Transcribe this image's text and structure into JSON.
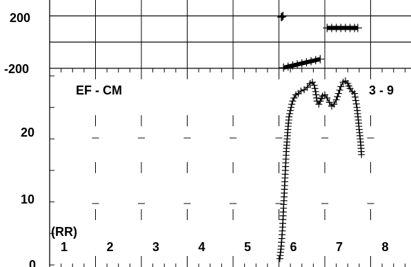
{
  "chart_data": [
    {
      "type": "scatter",
      "panel": "top",
      "title": "",
      "yticks": [
        200,
        -200
      ],
      "ytick_labels": [
        "200",
        "-200"
      ],
      "ylim": [
        -200,
        200
      ],
      "grid": true,
      "series": [
        {
          "values_x": [
            5.05,
            5.07,
            5.09
          ],
          "values_y": [
            190,
            195,
            200
          ]
        },
        {
          "values_x": [
            5.1,
            5.2,
            5.3,
            5.4,
            5.5,
            5.6,
            5.7,
            5.8,
            5.9
          ],
          "values_y": [
            -195,
            -187,
            -178,
            -170,
            -162,
            -154,
            -146,
            -138,
            -130
          ]
        },
        {
          "values_x": [
            6.05,
            6.15,
            6.25,
            6.35,
            6.45,
            6.55,
            6.65,
            6.72
          ],
          "values_y": [
            108,
            108,
            108,
            108,
            108,
            108,
            108,
            108
          ]
        }
      ]
    },
    {
      "type": "scatter",
      "panel": "bottom",
      "title": "EF - CM",
      "right_label": "3 - 9",
      "axis_note": "(RR)",
      "yticks": [
        0,
        10,
        20
      ],
      "ytick_labels": [
        "0",
        "10",
        "20"
      ],
      "ylim": [
        0,
        30
      ],
      "xlim": [
        0,
        9
      ],
      "column_labels": [
        "1",
        "2",
        "3",
        "4",
        "5",
        "6",
        "7",
        "8"
      ],
      "column_label_x": [
        0.12,
        1.12,
        2.12,
        3.12,
        4.12,
        5.12,
        6.12,
        7.12
      ],
      "grid": true,
      "series": [
        {
          "x": [
            5.02,
            5.05,
            5.08,
            5.1,
            5.12,
            5.14,
            5.16,
            5.18,
            5.2,
            5.22,
            5.25,
            5.28,
            5.3,
            5.33,
            5.37,
            5.42,
            5.48,
            5.55,
            5.62,
            5.68,
            5.73,
            5.77,
            5.8,
            5.83,
            5.87,
            5.9,
            5.95,
            6.0,
            6.05,
            6.1,
            6.15,
            6.2,
            6.25,
            6.3,
            6.35,
            6.4,
            6.45,
            6.5,
            6.55,
            6.6,
            6.65,
            6.7,
            6.73,
            6.75,
            6.78,
            6.8
          ],
          "y": [
            1,
            3,
            6,
            9,
            12,
            15,
            18,
            20,
            22,
            23.5,
            24.5,
            25.5,
            26,
            26.5,
            27,
            27.2,
            27.6,
            27.8,
            28.2,
            28.8,
            29,
            28.5,
            27.5,
            26,
            25.5,
            26,
            26.8,
            27,
            26.5,
            25.8,
            25.2,
            25.5,
            26.2,
            27.2,
            28.3,
            29,
            29.2,
            28.8,
            28,
            27.5,
            27.2,
            25,
            23,
            21.5,
            19.5,
            17.5
          ]
        }
      ]
    }
  ]
}
